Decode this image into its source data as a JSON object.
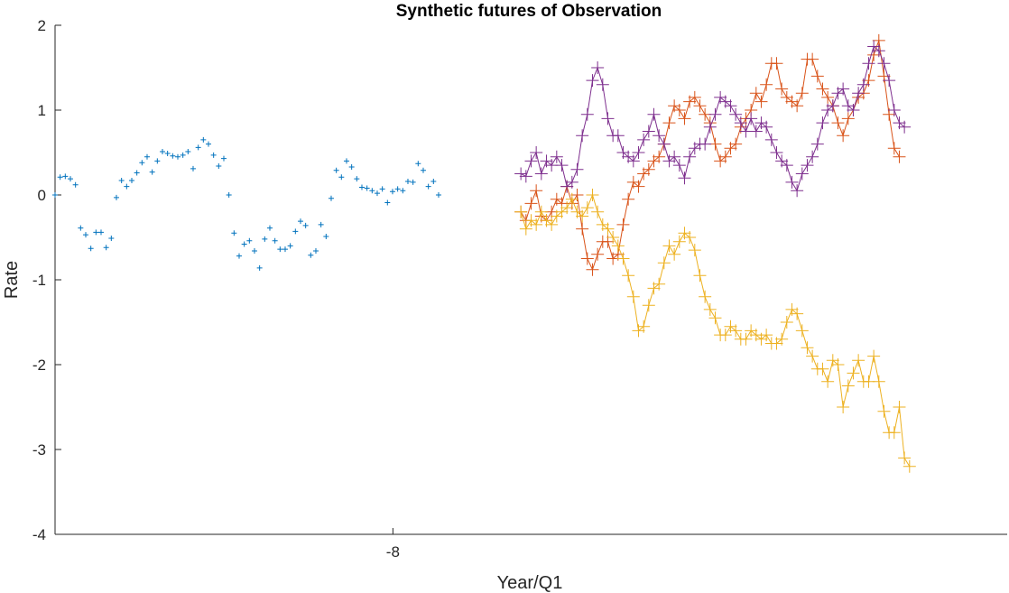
{
  "chart_data": {
    "type": "line",
    "title": "Synthetic futures of Observation",
    "xlabel": "Year/Q1",
    "ylabel": "Rate",
    "ylim": [
      -4,
      2
    ],
    "yticks": [
      2,
      1,
      0,
      -1,
      -2,
      -3,
      -4
    ],
    "xlim": [
      -30,
      32
    ],
    "xticks": [
      {
        "value": -8,
        "label": "-8"
      }
    ],
    "grid": false,
    "series": [
      {
        "color": "#0072BD",
        "marker": "+",
        "line": false,
        "x_start": -30,
        "x_step": 0.333,
        "values": [
          0.0,
          0.21,
          0.22,
          0.19,
          0.12,
          -0.39,
          -0.47,
          -0.63,
          -0.44,
          -0.44,
          -0.62,
          -0.51,
          -0.03,
          0.17,
          0.1,
          0.17,
          0.26,
          0.38,
          0.45,
          0.27,
          0.4,
          0.51,
          0.49,
          0.46,
          0.45,
          0.47,
          0.51,
          0.31,
          0.56,
          0.65,
          0.6,
          0.47,
          0.34,
          0.43,
          0.0,
          -0.45,
          -0.72,
          -0.58,
          -0.54,
          -0.66,
          -0.86,
          -0.52,
          -0.39,
          -0.54,
          -0.64,
          -0.64,
          -0.6,
          -0.43,
          -0.31,
          -0.36,
          -0.71,
          -0.66,
          -0.35,
          -0.49,
          -0.04,
          0.29,
          0.21,
          0.4,
          0.33,
          0.19,
          0.09,
          0.08,
          0.05,
          0.02,
          0.07,
          -0.09,
          0.04,
          0.07,
          0.05,
          0.16,
          0.15,
          0.37,
          0.29,
          0.1,
          0.16,
          0.0
        ]
      },
      {
        "color": "#D95319",
        "marker": "+",
        "line": true,
        "x_start": 0.333,
        "x_step": 0.333,
        "values": [
          -0.2,
          -0.3,
          -0.1,
          0.05,
          -0.25,
          -0.3,
          -0.2,
          -0.05,
          -0.1,
          0.1,
          -0.1,
          0.0,
          -0.4,
          -0.75,
          -0.88,
          -0.7,
          -0.55,
          -0.55,
          -0.75,
          -0.7,
          -0.35,
          -0.05,
          0.15,
          0.1,
          0.25,
          0.3,
          0.4,
          0.45,
          0.6,
          0.85,
          1.05,
          1.0,
          0.9,
          1.1,
          1.15,
          1.05,
          0.95,
          0.85,
          0.6,
          0.4,
          0.45,
          0.55,
          0.6,
          0.8,
          0.9,
          1.0,
          1.2,
          1.1,
          1.3,
          1.55,
          1.55,
          1.25,
          1.15,
          1.1,
          1.05,
          1.2,
          1.6,
          1.6,
          1.4,
          1.25,
          1.15,
          1.05,
          0.85,
          0.7,
          0.9,
          1.0,
          1.15,
          1.2,
          1.35,
          1.65,
          1.82,
          1.4,
          0.95,
          0.55,
          0.45
        ]
      },
      {
        "color": "#EDB120",
        "marker": "+",
        "line": true,
        "x_start": 0.333,
        "x_step": 0.333,
        "values": [
          -0.2,
          -0.4,
          -0.3,
          -0.35,
          -0.2,
          -0.3,
          -0.35,
          -0.25,
          -0.2,
          -0.15,
          -0.05,
          -0.2,
          -0.25,
          -0.15,
          0.0,
          -0.2,
          -0.35,
          -0.4,
          -0.5,
          -0.6,
          -0.75,
          -0.95,
          -1.2,
          -1.6,
          -1.55,
          -1.3,
          -1.1,
          -1.05,
          -0.8,
          -0.6,
          -0.7,
          -0.55,
          -0.45,
          -0.5,
          -0.65,
          -0.95,
          -1.2,
          -1.35,
          -1.45,
          -1.65,
          -1.65,
          -1.55,
          -1.6,
          -1.7,
          -1.7,
          -1.6,
          -1.65,
          -1.7,
          -1.65,
          -1.75,
          -1.75,
          -1.7,
          -1.5,
          -1.35,
          -1.4,
          -1.6,
          -1.8,
          -1.9,
          -2.05,
          -2.05,
          -2.2,
          -1.95,
          -2.0,
          -2.5,
          -2.25,
          -2.1,
          -1.95,
          -2.2,
          -2.2,
          -1.9,
          -2.2,
          -2.55,
          -2.8,
          -2.8,
          -2.5,
          -3.1,
          -3.2
        ]
      },
      {
        "color": "#7E2F8E",
        "marker": "+",
        "line": true,
        "x_start": 0.333,
        "x_step": 0.333,
        "values": [
          0.25,
          0.22,
          0.4,
          0.5,
          0.25,
          0.4,
          0.35,
          0.45,
          0.35,
          0.1,
          0.15,
          0.3,
          0.7,
          0.95,
          1.35,
          1.5,
          1.3,
          0.9,
          0.7,
          0.7,
          0.5,
          0.45,
          0.4,
          0.5,
          0.65,
          0.75,
          0.95,
          0.7,
          0.6,
          0.4,
          0.45,
          0.35,
          0.2,
          0.45,
          0.55,
          0.6,
          0.6,
          0.8,
          0.95,
          1.15,
          1.1,
          1.05,
          0.95,
          0.85,
          0.75,
          0.9,
          0.75,
          0.85,
          0.8,
          0.65,
          0.5,
          0.4,
          0.35,
          0.15,
          0.05,
          0.25,
          0.35,
          0.45,
          0.6,
          0.85,
          1.0,
          1.05,
          1.2,
          1.25,
          1.05,
          1.0,
          1.2,
          1.3,
          1.55,
          1.75,
          1.7,
          1.55,
          1.35,
          1.0,
          0.85,
          0.8
        ]
      }
    ]
  }
}
